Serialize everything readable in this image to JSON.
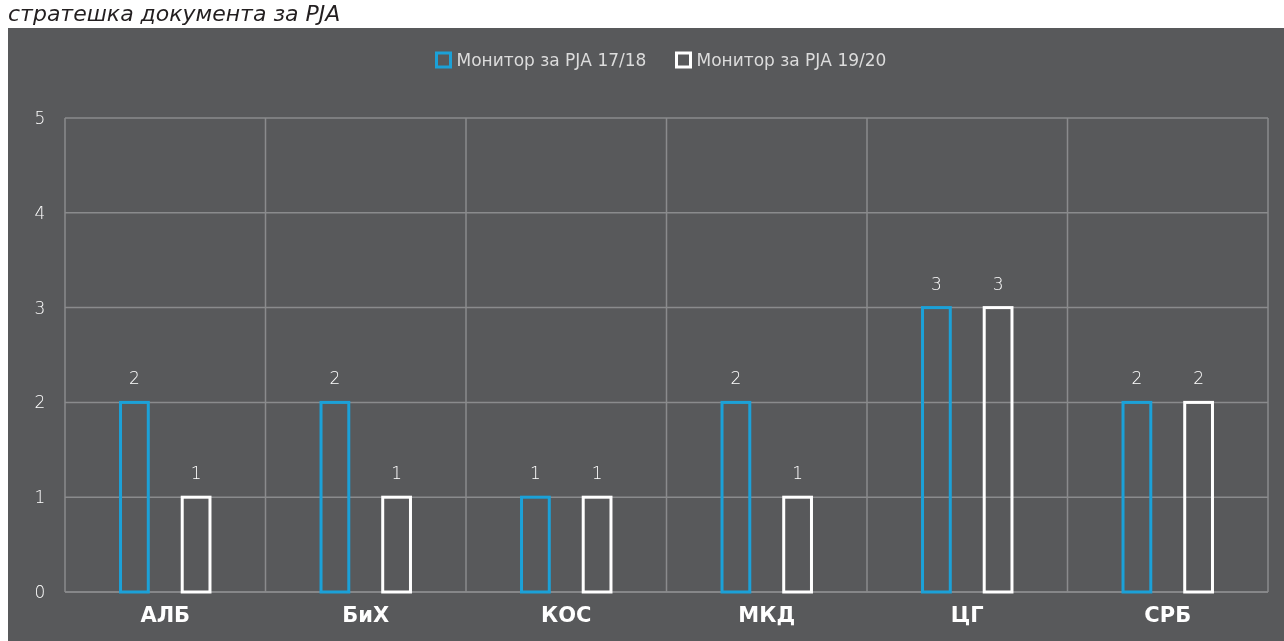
{
  "chart_data": {
    "type": "bar",
    "title": "стратешка документа за РЈА",
    "categories": [
      "АЛБ",
      "БиХ",
      "КОС",
      "МКД",
      "ЦГ",
      "СРБ"
    ],
    "series": [
      {
        "name": "Монитор за РЈА 17/18",
        "color": "#1ba1d8",
        "values": [
          2,
          2,
          1,
          2,
          3,
          2
        ]
      },
      {
        "name": "Монитор за РЈА 19/20",
        "color": "#ffffff",
        "values": [
          1,
          1,
          1,
          1,
          3,
          2
        ]
      }
    ],
    "ylim": [
      0,
      5
    ],
    "yticks": [
      0,
      1,
      2,
      3,
      4,
      5
    ],
    "grid": true,
    "legend": "top",
    "data_labels": true
  }
}
